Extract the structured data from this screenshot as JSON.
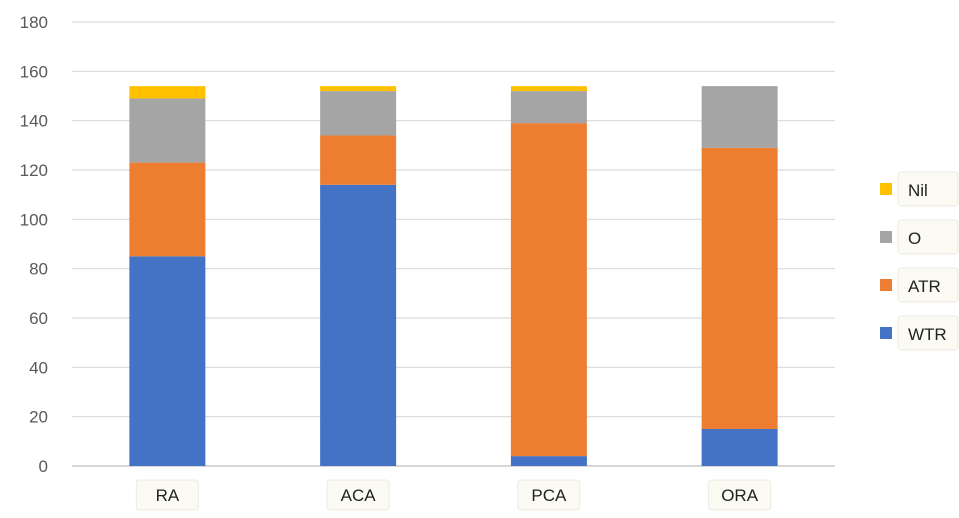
{
  "chart_data": {
    "type": "bar",
    "stacked": true,
    "categories": [
      "RA",
      "ACA",
      "PCA",
      "ORA"
    ],
    "series": [
      {
        "name": "WTR",
        "color": "#4472c4",
        "values": [
          85,
          114,
          4,
          15
        ]
      },
      {
        "name": "ATR",
        "color": "#ed7d31",
        "values": [
          38,
          20,
          135,
          114
        ]
      },
      {
        "name": "O",
        "color": "#a5a5a5",
        "values": [
          26,
          18,
          13,
          25
        ]
      },
      {
        "name": "Nil",
        "color": "#ffc000",
        "values": [
          5,
          2,
          2,
          0
        ]
      }
    ],
    "ylim": [
      0,
      180
    ],
    "yticks": [
      "0",
      "20",
      "40",
      "60",
      "80",
      "100",
      "120",
      "140",
      "160",
      "180"
    ],
    "grid": true,
    "legend_position": "right",
    "legend_order": [
      "Nil",
      "O",
      "ATR",
      "WTR"
    ]
  }
}
